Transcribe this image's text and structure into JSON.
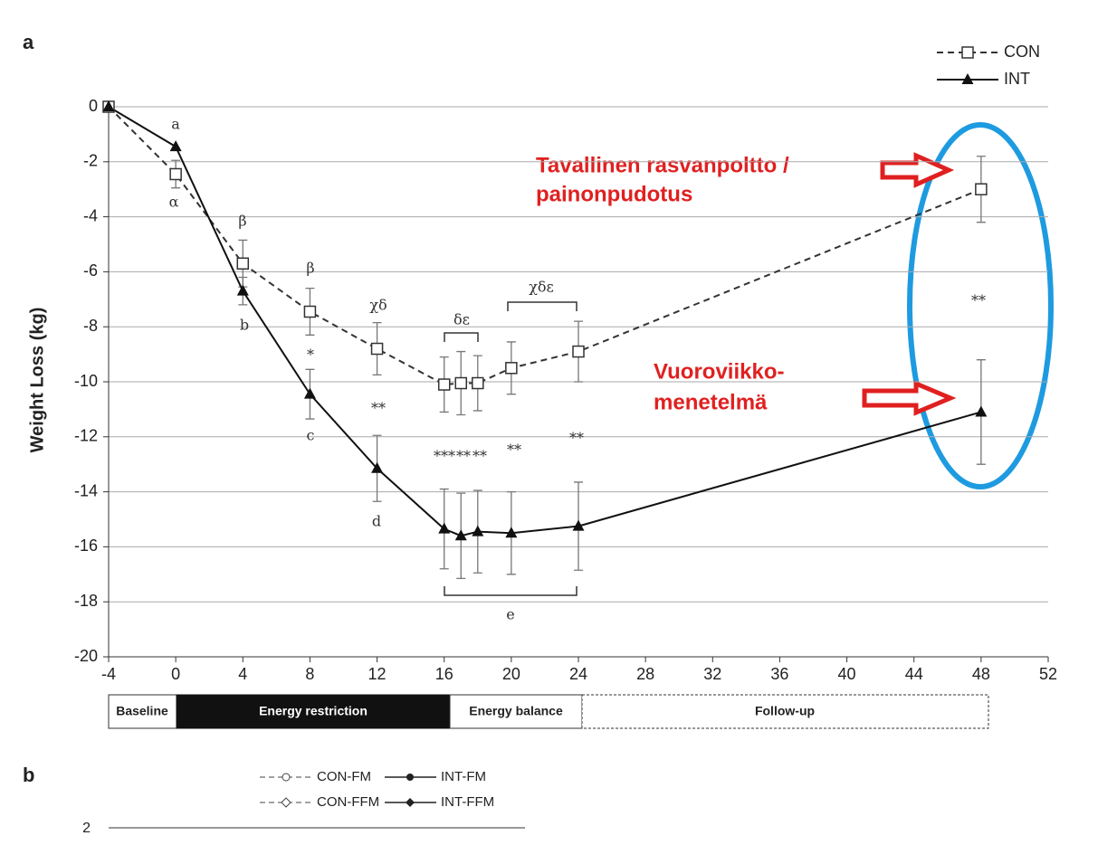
{
  "chart_data": {
    "type": "line",
    "panel_label": "a",
    "ylabel": "Weight Loss (kg)",
    "x": [
      -4,
      0,
      4,
      8,
      12,
      16,
      17,
      18,
      20,
      24,
      48
    ],
    "series": [
      {
        "name": "CON",
        "color": "#333333",
        "dashed": true,
        "marker": "square",
        "values": [
          0,
          -2.45,
          -5.7,
          -7.45,
          -8.8,
          -10.1,
          -10.05,
          -10.05,
          -9.5,
          -8.9,
          -3.0
        ],
        "errors": [
          null,
          0.5,
          0.85,
          0.85,
          0.95,
          1.0,
          1.15,
          1.0,
          0.95,
          1.1,
          1.2
        ]
      },
      {
        "name": "INT",
        "color": "#111111",
        "dashed": false,
        "marker": "triangle",
        "values": [
          0,
          -1.45,
          -6.7,
          -10.45,
          -13.15,
          -15.35,
          -15.6,
          -15.45,
          -15.5,
          -15.25,
          -11.1
        ],
        "errors": [
          null,
          null,
          0.5,
          0.9,
          1.2,
          1.45,
          1.55,
          1.5,
          1.5,
          1.6,
          1.9
        ]
      }
    ],
    "xlim": [
      -4,
      52
    ],
    "xticks": [
      -4,
      0,
      4,
      8,
      12,
      16,
      20,
      24,
      28,
      32,
      36,
      40,
      44,
      48,
      52
    ],
    "ylim": [
      -20,
      0
    ],
    "yticks": [
      0,
      -2,
      -4,
      -6,
      -8,
      -10,
      -12,
      -14,
      -16,
      -18,
      -20
    ],
    "grid": true,
    "legend": "top-right",
    "annotations": [
      "a",
      "α",
      "β",
      "b",
      "β",
      "*",
      "c",
      "χδ",
      "**",
      "d",
      "δε",
      "***",
      "**",
      "**",
      "**",
      "χδε",
      "**",
      "e",
      "**"
    ],
    "phases": [
      "Baseline",
      "Energy restriction",
      "Energy balance",
      "Follow-up"
    ],
    "callouts": [
      "Tavallinen rasvanpoltto /",
      "painonpudotus",
      "Vuoroviikko-",
      "menetelmä"
    ]
  },
  "panel_b": {
    "label": "b",
    "legend": [
      "CON-FM",
      "INT-FM",
      "CON-FFM",
      "INT-FFM"
    ],
    "ytick": 2
  }
}
